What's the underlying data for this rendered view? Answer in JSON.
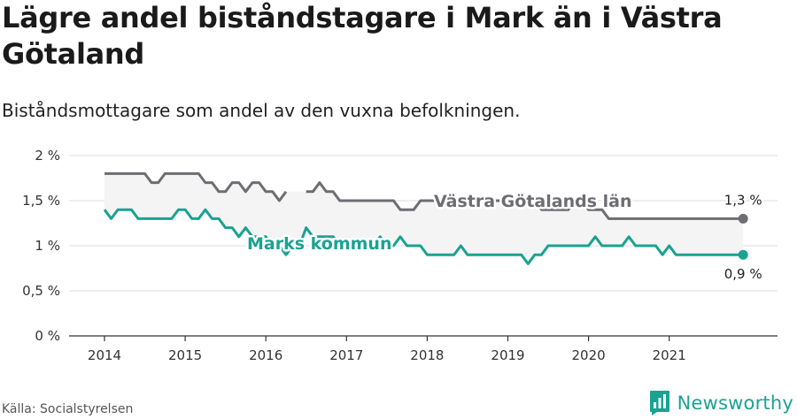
{
  "header": {
    "title": "Lägre andel biståndstagare i Mark än i Västra Götaland",
    "subtitle": "Biståndsmottagare som andel av den vuxna befolkningen."
  },
  "footer": {
    "source": "Källa: Socialstyrelsen",
    "brand": "Newsworthy"
  },
  "colors": {
    "region": "#6d6d72",
    "kommun": "#1aa292",
    "band": "#f4f4f4",
    "grid": "#dedede"
  },
  "chart_data": {
    "type": "line",
    "title": "Lägre andel biståndstagare i Mark än i Västra Götaland",
    "subtitle": "Biståndsmottagare som andel av den vuxna befolkningen.",
    "xlabel": "",
    "ylabel": "",
    "x_ticks": [
      "2014",
      "2015",
      "2016",
      "2017",
      "2018",
      "2019",
      "2020",
      "2021"
    ],
    "y_ticks": [
      "0 %",
      "0,5 %",
      "1 %",
      "1,5 %",
      "2 %"
    ],
    "ylim": [
      0,
      2
    ],
    "x_start": 2014.0,
    "x_step": 0.0833333,
    "grid": true,
    "legend": "inline labels",
    "series": [
      {
        "name": "Västra Götalands län",
        "key": "region",
        "end_label": "1,3 %",
        "values": [
          1.8,
          1.8,
          1.8,
          1.8,
          1.8,
          1.8,
          1.8,
          1.7,
          1.7,
          1.8,
          1.8,
          1.8,
          1.8,
          1.8,
          1.8,
          1.7,
          1.7,
          1.6,
          1.6,
          1.7,
          1.7,
          1.6,
          1.7,
          1.7,
          1.6,
          1.6,
          1.5,
          1.6,
          null,
          null,
          1.6,
          1.6,
          1.7,
          1.6,
          1.6,
          1.5,
          1.5,
          1.5,
          1.5,
          1.5,
          1.5,
          1.5,
          1.5,
          1.5,
          1.4,
          1.4,
          1.4,
          1.5,
          1.5,
          1.5,
          1.5,
          1.5,
          1.5,
          1.5,
          1.5,
          1.5,
          1.5,
          1.5,
          1.5,
          1.5,
          1.5,
          1.5,
          1.5,
          1.5,
          1.5,
          1.4,
          1.4,
          1.4,
          1.4,
          1.4,
          1.5,
          1.5,
          1.4,
          1.4,
          1.4,
          1.3,
          1.3,
          1.3,
          1.3,
          1.3,
          1.3,
          1.3,
          1.3,
          1.3,
          1.3,
          1.3,
          1.3,
          1.3,
          1.3,
          1.3,
          1.3,
          1.3,
          1.3,
          1.3,
          1.3,
          1.3
        ]
      },
      {
        "name": "Marks kommun",
        "key": "kommun",
        "end_label": "0,9 %",
        "values": [
          1.4,
          1.3,
          1.4,
          1.4,
          1.4,
          1.3,
          1.3,
          1.3,
          1.3,
          1.3,
          1.3,
          1.4,
          1.4,
          1.3,
          1.3,
          1.4,
          1.3,
          1.3,
          1.2,
          1.2,
          1.1,
          1.2,
          1.1,
          1.1,
          1.1,
          1.0,
          1.0,
          0.9,
          1.0,
          1.0,
          1.2,
          1.1,
          1.1,
          1.1,
          1.1,
          1.0,
          1.0,
          1.0,
          1.0,
          1.0,
          1.0,
          1.1,
          1.0,
          1.0,
          1.1,
          1.0,
          1.0,
          1.0,
          0.9,
          0.9,
          0.9,
          0.9,
          0.9,
          1.0,
          0.9,
          0.9,
          0.9,
          0.9,
          0.9,
          0.9,
          0.9,
          0.9,
          0.9,
          0.8,
          0.9,
          0.9,
          1.0,
          1.0,
          1.0,
          1.0,
          1.0,
          1.0,
          1.0,
          1.1,
          1.0,
          1.0,
          1.0,
          1.0,
          1.1,
          1.0,
          1.0,
          1.0,
          1.0,
          0.9,
          1.0,
          0.9,
          0.9,
          0.9,
          0.9,
          0.9,
          0.9,
          0.9,
          0.9,
          0.9,
          0.9,
          0.9
        ]
      }
    ]
  }
}
